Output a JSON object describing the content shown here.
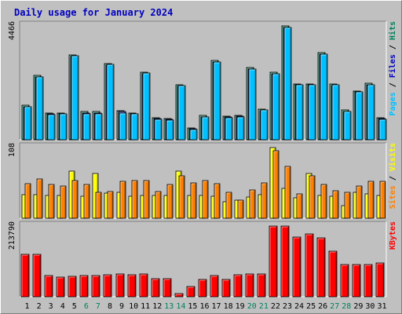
{
  "title": "Daily usage for January 2024",
  "colors": {
    "background": "#c0c0c0",
    "title": "#0000c0",
    "hits": "#00805c",
    "files": "#0000c0",
    "pages": "#00c0ff",
    "visits": "#ffff00",
    "sites": "#ff8000",
    "kbytes": "#ff0000",
    "weekend_label": "#00805c",
    "weekday_label": "#000000"
  },
  "chart_data": {
    "type": "bar",
    "title": "Daily usage for January 2024",
    "x": [
      "1",
      "2",
      "3",
      "4",
      "5",
      "6",
      "7",
      "8",
      "9",
      "10",
      "11",
      "12",
      "13",
      "14",
      "15",
      "16",
      "17",
      "18",
      "19",
      "20",
      "21",
      "22",
      "23",
      "24",
      "25",
      "26",
      "27",
      "28",
      "29",
      "30",
      "31"
    ],
    "weekend_days": [
      "6",
      "7",
      "13",
      "14",
      "20",
      "21",
      "27",
      "28"
    ],
    "panels": [
      {
        "name": "top",
        "max_label": "4466",
        "ymax": 4466,
        "series": [
          {
            "name": "Hits",
            "values": [
              1350,
              2520,
              1050,
              1060,
              3330,
              1100,
              1110,
              2990,
              1140,
              1060,
              2660,
              870,
              840,
              2160,
              470,
              950,
              3100,
              930,
              950,
              2820,
              1200,
              2640,
              4460,
              2200,
              2200,
              3420,
              2180,
              1160,
              1920,
              2220,
              870
            ]
          },
          {
            "name": "Files",
            "values": [
              1290,
              2460,
              1010,
              1020,
              3270,
              1050,
              1060,
              2930,
              1100,
              1020,
              2600,
              830,
              800,
              2100,
              440,
              900,
              3040,
              890,
              910,
              2760,
              1150,
              2580,
              4400,
              2160,
              2160,
              3360,
              2130,
              1120,
              1870,
              2160,
              830
            ]
          },
          {
            "name": "Pages",
            "values": [
              1300,
              2460,
              1000,
              1010,
              3290,
              1020,
              1030,
              2950,
              1060,
              1010,
              2610,
              800,
              780,
              2120,
              400,
              880,
              3040,
              870,
              880,
              2780,
              1160,
              2590,
              4400,
              2160,
              2160,
              3360,
              2150,
              1110,
              1890,
              2170,
              800
            ]
          }
        ],
        "legend": [
          "Pages",
          "Files",
          "Hits"
        ]
      },
      {
        "name": "middle",
        "max_label": "108",
        "ymax": 108,
        "series": [
          {
            "name": "Visits",
            "values": [
              36,
              36,
              35,
              35,
              72,
              33,
              69,
              38,
              39,
              34,
              35,
              35,
              35,
              72,
              35,
              35,
              33,
              25,
              28,
              32,
              36,
              108,
              45,
              31,
              68,
              35,
              33,
              19,
              39,
              37,
              35
            ]
          },
          {
            "name": "Sites",
            "values": [
              53,
              60,
              51,
              49,
              58,
              51,
              40,
              41,
              56,
              58,
              58,
              41,
              51,
              65,
              54,
              57,
              53,
              40,
              28,
              43,
              54,
              103,
              79,
              37,
              65,
              52,
              42,
              39,
              49,
              56,
              56
            ]
          }
        ],
        "legend": [
          "Sites",
          "Visits"
        ]
      },
      {
        "name": "bottom",
        "max_label": "213790",
        "ymax": 213790,
        "series": [
          {
            "name": "KBytes",
            "values": [
              128000,
              128000,
              64000,
              60000,
              62000,
              64000,
              64000,
              66000,
              68000,
              66000,
              68000,
              55000,
              55000,
              9000,
              30000,
              53000,
              65000,
              53000,
              66000,
              68000,
              70000,
              213000,
              213000,
              180000,
              190000,
              178000,
              138000,
              98000,
              98000,
              98000,
              102000
            ]
          }
        ],
        "legend": [
          "KBytes"
        ]
      }
    ]
  }
}
